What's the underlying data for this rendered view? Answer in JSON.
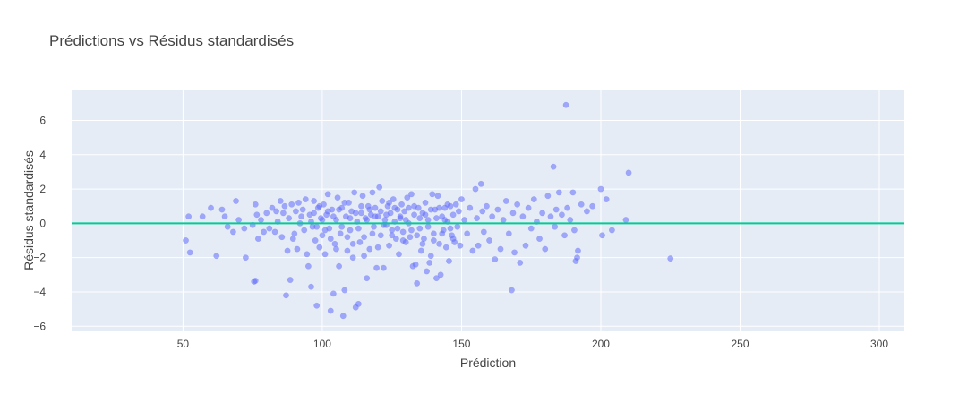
{
  "chart_data": {
    "type": "scatter",
    "title": "Prédictions vs Résidus standardisés",
    "xlabel": "Prédiction",
    "ylabel": "Résidus standardisés",
    "xlim": [
      10,
      309
    ],
    "ylim": [
      -6.3,
      7.8
    ],
    "x_ticks": [
      50,
      100,
      150,
      200,
      250,
      300
    ],
    "y_ticks": [
      -6,
      -4,
      -2,
      0,
      2,
      4,
      6
    ],
    "grid": true,
    "legend": "none",
    "reference_line_y": 0,
    "colors": {
      "points": "#636efa",
      "reference_line": "#00cc96",
      "plot_bg": "#e5ecf6",
      "grid": "#ffffff"
    },
    "points": [
      [
        51,
        -1.0
      ],
      [
        52,
        0.4
      ],
      [
        52.5,
        -1.7
      ],
      [
        57,
        0.4
      ],
      [
        62,
        -1.9
      ],
      [
        64,
        0.8
      ],
      [
        65,
        0.4
      ],
      [
        68,
        -0.5
      ],
      [
        69,
        1.3
      ],
      [
        70,
        0.2
      ],
      [
        72,
        -0.3
      ],
      [
        72.5,
        -2.0
      ],
      [
        75,
        -0.1
      ],
      [
        75.5,
        -3.4
      ],
      [
        76,
        -3.35
      ],
      [
        76.5,
        0.5
      ],
      [
        76,
        1.1
      ],
      [
        77,
        -0.9
      ],
      [
        78,
        0.2
      ],
      [
        80,
        0.6
      ],
      [
        81,
        -0.3
      ],
      [
        82,
        0.9
      ],
      [
        83,
        -0.5
      ],
      [
        84,
        0.1
      ],
      [
        85,
        1.3
      ],
      [
        85.5,
        -0.8
      ],
      [
        86,
        0.6
      ],
      [
        87,
        -4.2
      ],
      [
        87.5,
        -1.6
      ],
      [
        88,
        0.3
      ],
      [
        88.5,
        -3.3
      ],
      [
        89,
        1.1
      ],
      [
        90,
        -0.6
      ],
      [
        90.5,
        0.7
      ],
      [
        91,
        -1.5
      ],
      [
        91.5,
        1.2
      ],
      [
        92,
        0.0
      ],
      [
        93,
        0.8
      ],
      [
        93.5,
        -0.4
      ],
      [
        94,
        1.4
      ],
      [
        95,
        -2.5
      ],
      [
        95.5,
        0.5
      ],
      [
        96,
        -3.7
      ],
      [
        96.5,
        -0.2
      ],
      [
        97,
        1.3
      ],
      [
        97.5,
        -1.0
      ],
      [
        98,
        -4.8
      ],
      [
        98.5,
        0.9
      ],
      [
        99,
        -1.4
      ],
      [
        99.5,
        0.3
      ],
      [
        100,
        -0.7
      ],
      [
        100.5,
        1.1
      ],
      [
        101,
        -1.8
      ],
      [
        101.5,
        0.5
      ],
      [
        102,
        1.7
      ],
      [
        102.5,
        -0.3
      ],
      [
        103,
        -5.1
      ],
      [
        103.5,
        0.8
      ],
      [
        104,
        -4.1
      ],
      [
        104.5,
        -1.2
      ],
      [
        105,
        0.2
      ],
      [
        105.5,
        1.5
      ],
      [
        106,
        -2.5
      ],
      [
        106.5,
        -0.6
      ],
      [
        107,
        0.9
      ],
      [
        107.5,
        -5.4
      ],
      [
        108,
        -3.9
      ],
      [
        108.5,
        0.4
      ],
      [
        109,
        -1.6
      ],
      [
        109.5,
        1.2
      ],
      [
        110,
        -0.4
      ],
      [
        110.5,
        0.7
      ],
      [
        111,
        -2.0
      ],
      [
        111.5,
        1.8
      ],
      [
        112,
        -4.9
      ],
      [
        112.5,
        0.1
      ],
      [
        113,
        -4.7
      ],
      [
        113.5,
        -1.1
      ],
      [
        114,
        0.6
      ],
      [
        114.5,
        1.6
      ],
      [
        115,
        -0.8
      ],
      [
        115.5,
        0.3
      ],
      [
        116,
        -3.2
      ],
      [
        116.5,
        1.0
      ],
      [
        117,
        -1.5
      ],
      [
        117.5,
        0.5
      ],
      [
        118,
        1.8
      ],
      [
        118.5,
        -0.2
      ],
      [
        119,
        0.9
      ],
      [
        119.5,
        -2.6
      ],
      [
        120,
        0.4
      ],
      [
        120.5,
        2.1
      ],
      [
        121,
        -0.7
      ],
      [
        121.5,
        1.3
      ],
      [
        122,
        -2.6
      ],
      [
        122.5,
        0.2
      ],
      [
        123,
        -0.1
      ],
      [
        123.5,
        1.0
      ],
      [
        124,
        -1.3
      ],
      [
        124.5,
        0.6
      ],
      [
        125,
        -0.4
      ],
      [
        125.5,
        1.4
      ],
      [
        126,
        0.1
      ],
      [
        126.5,
        -0.9
      ],
      [
        127,
        0.8
      ],
      [
        127.5,
        -1.8
      ],
      [
        128,
        0.3
      ],
      [
        128.5,
        1.1
      ],
      [
        129,
        -0.5
      ],
      [
        129.5,
        0.7
      ],
      [
        130,
        -1.1
      ],
      [
        130.5,
        1.5
      ],
      [
        131,
        0.0
      ],
      [
        131.5,
        -0.8
      ],
      [
        132,
        1.7
      ],
      [
        132.5,
        -2.5
      ],
      [
        133,
        0.5
      ],
      [
        133.5,
        -2.4
      ],
      [
        134,
        -3.5
      ],
      [
        134.5,
        0.9
      ],
      [
        135,
        -0.3
      ],
      [
        135.5,
        -1.6
      ],
      [
        136,
        0.6
      ],
      [
        136.5,
        -0.9
      ],
      [
        137,
        1.2
      ],
      [
        137.5,
        -2.8
      ],
      [
        138,
        0.2
      ],
      [
        138.5,
        -2.3
      ],
      [
        139,
        -1.9
      ],
      [
        139.5,
        1.7
      ],
      [
        140,
        -0.6
      ],
      [
        140.5,
        0.8
      ],
      [
        141,
        -3.2
      ],
      [
        141.5,
        1.6
      ],
      [
        142,
        -1.2
      ],
      [
        142.5,
        -3.0
      ],
      [
        143,
        0.4
      ],
      [
        143.5,
        -0.4
      ],
      [
        144,
        0.9
      ],
      [
        144.5,
        -1.4
      ],
      [
        145,
        0.1
      ],
      [
        145.5,
        -2.2
      ],
      [
        146,
        1.0
      ],
      [
        146.5,
        -0.7
      ],
      [
        147,
        0.5
      ],
      [
        147.5,
        -1.1
      ],
      [
        148,
        1.1
      ],
      [
        148.5,
        -0.2
      ],
      [
        149,
        0.7
      ],
      [
        149.5,
        -1.3
      ],
      [
        150,
        1.4
      ],
      [
        151,
        0.2
      ],
      [
        152,
        -0.6
      ],
      [
        153,
        0.9
      ],
      [
        154,
        -1.6
      ],
      [
        155,
        2.0
      ],
      [
        155.5,
        0.3
      ],
      [
        156,
        -1.3
      ],
      [
        157,
        2.3
      ],
      [
        157.5,
        0.7
      ],
      [
        158,
        -0.5
      ],
      [
        159,
        1.0
      ],
      [
        160,
        -1.0
      ],
      [
        161,
        0.4
      ],
      [
        162,
        -2.1
      ],
      [
        163,
        0.8
      ],
      [
        164,
        -1.5
      ],
      [
        165,
        0.2
      ],
      [
        166,
        1.3
      ],
      [
        167,
        -0.6
      ],
      [
        168,
        -3.9
      ],
      [
        168.5,
        0.6
      ],
      [
        169,
        -1.7
      ],
      [
        170,
        1.1
      ],
      [
        171,
        -2.3
      ],
      [
        172,
        0.4
      ],
      [
        173,
        -1.3
      ],
      [
        174,
        0.9
      ],
      [
        175,
        -0.3
      ],
      [
        176,
        1.4
      ],
      [
        177,
        0.1
      ],
      [
        178,
        -0.9
      ],
      [
        179,
        0.6
      ],
      [
        180,
        -1.5
      ],
      [
        181,
        1.6
      ],
      [
        182,
        0.4
      ],
      [
        183,
        3.3
      ],
      [
        183.5,
        -0.2
      ],
      [
        184,
        0.8
      ],
      [
        185,
        1.8
      ],
      [
        186,
        0.5
      ],
      [
        187,
        -0.7
      ],
      [
        187.5,
        6.9
      ],
      [
        188,
        0.9
      ],
      [
        189,
        0.2
      ],
      [
        190,
        1.8
      ],
      [
        190.5,
        -0.4
      ],
      [
        191,
        -2.2
      ],
      [
        191.5,
        -2.0
      ],
      [
        191.8,
        -1.6
      ],
      [
        193,
        1.1
      ],
      [
        195,
        0.7
      ],
      [
        197,
        1.0
      ],
      [
        200,
        2.0
      ],
      [
        200.5,
        -0.7
      ],
      [
        202,
        1.4
      ],
      [
        204,
        -0.4
      ],
      [
        209,
        0.2
      ],
      [
        210,
        2.95
      ],
      [
        225,
        -2.05
      ],
      [
        60,
        0.9
      ],
      [
        66,
        -0.2
      ],
      [
        79,
        -0.5
      ],
      [
        83.5,
        0.7
      ],
      [
        86.5,
        1.0
      ],
      [
        89.5,
        -0.9
      ],
      [
        92.5,
        0.4
      ],
      [
        94.5,
        -1.8
      ],
      [
        96,
        0.1
      ],
      [
        97,
        0.6
      ],
      [
        98,
        -0.2
      ],
      [
        99,
        1.0
      ],
      [
        100,
        0.2
      ],
      [
        101,
        -0.4
      ],
      [
        102,
        0.7
      ],
      [
        103,
        -0.9
      ],
      [
        104,
        0.4
      ],
      [
        105,
        -1.5
      ],
      [
        106,
        0.8
      ],
      [
        107,
        -0.2
      ],
      [
        108,
        1.2
      ],
      [
        109,
        -0.8
      ],
      [
        110,
        0.3
      ],
      [
        111,
        -1.2
      ],
      [
        112,
        0.6
      ],
      [
        113,
        -0.3
      ],
      [
        114,
        1.0
      ],
      [
        115,
        -1.9
      ],
      [
        116,
        0.2
      ],
      [
        117,
        0.8
      ],
      [
        118,
        -0.6
      ],
      [
        119,
        0.4
      ],
      [
        120,
        -1.4
      ],
      [
        121,
        0.7
      ],
      [
        122,
        -0.1
      ],
      [
        123,
        0.5
      ],
      [
        124,
        1.2
      ],
      [
        125,
        -0.7
      ],
      [
        126,
        0.9
      ],
      [
        127,
        -0.3
      ],
      [
        128,
        0.4
      ],
      [
        129,
        -1.0
      ],
      [
        130,
        0.2
      ],
      [
        131,
        0.9
      ],
      [
        132,
        -0.4
      ],
      [
        133,
        1.0
      ],
      [
        134,
        -0.7
      ],
      [
        135,
        0.3
      ],
      [
        136,
        -1.2
      ],
      [
        137,
        0.5
      ],
      [
        138,
        -0.2
      ],
      [
        139,
        0.8
      ],
      [
        140,
        -1.0
      ],
      [
        141,
        0.3
      ],
      [
        142,
        0.9
      ],
      [
        143,
        -0.6
      ],
      [
        144,
        0.2
      ],
      [
        145,
        1.1
      ],
      [
        146,
        -0.3
      ],
      [
        147,
        -0.9
      ]
    ]
  }
}
